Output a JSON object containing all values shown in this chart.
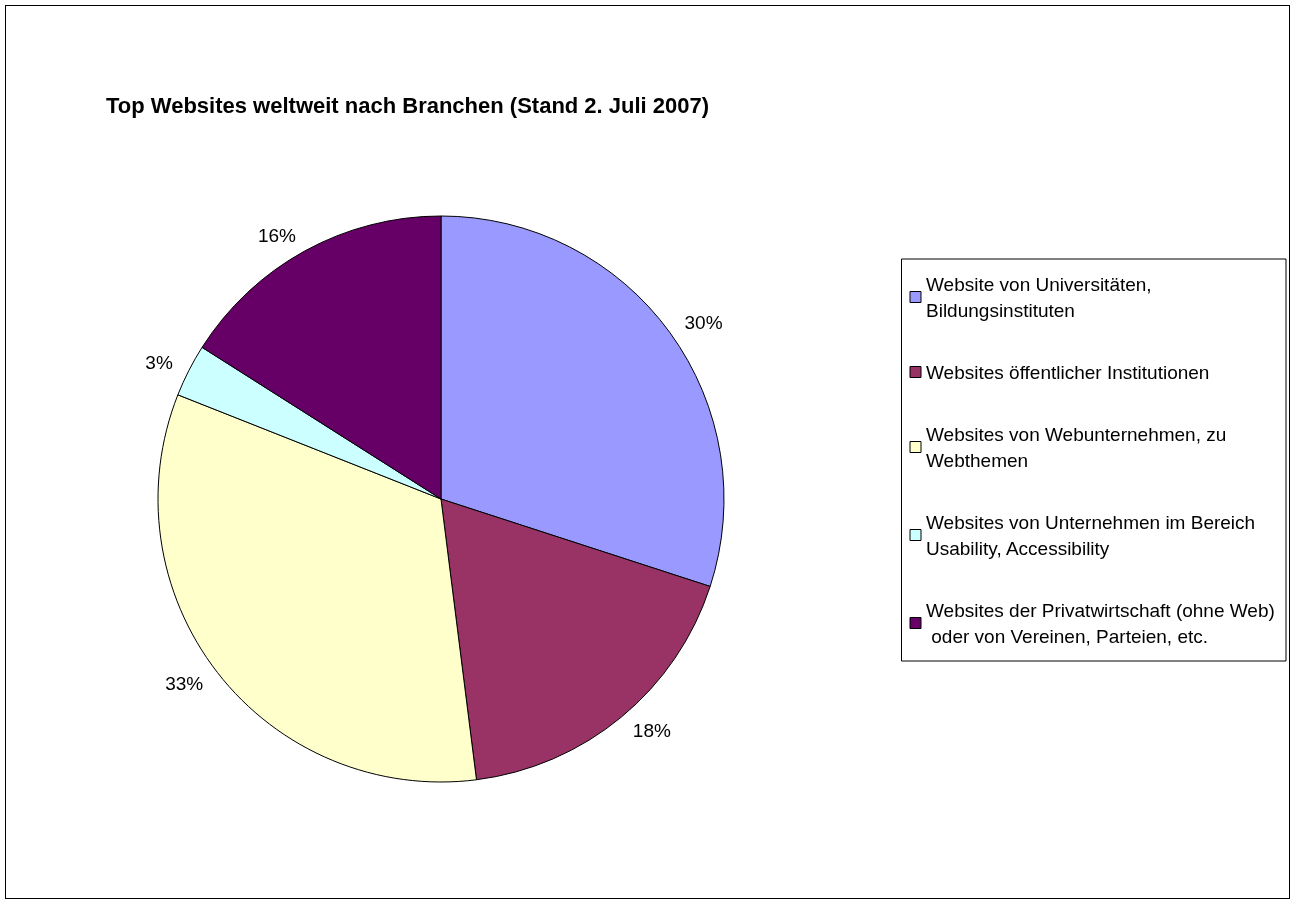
{
  "chart_data": {
    "type": "pie",
    "title": "Top Websites weltweit nach Branchen (Stand 2. Juli 2007)",
    "categories": [
      "Website von Universitäten, Bildungsinstituten",
      "Websites öffentlicher Institutionen",
      "Websites von Webunternehmen, zu Webthemen",
      "Websites von Unternehmen im Bereich Usability, Accessibility",
      "Websites der Privatwirtschaft (ohne Web) oder von Vereinen, Parteien, etc."
    ],
    "values": [
      30,
      18,
      33,
      3,
      16
    ],
    "colors": [
      "#9999ff",
      "#993366",
      "#ffffcc",
      "#ccffff",
      "#660066"
    ],
    "value_labels": [
      "30%",
      "18%",
      "33%",
      "3%",
      "16%"
    ],
    "legend": "right"
  }
}
